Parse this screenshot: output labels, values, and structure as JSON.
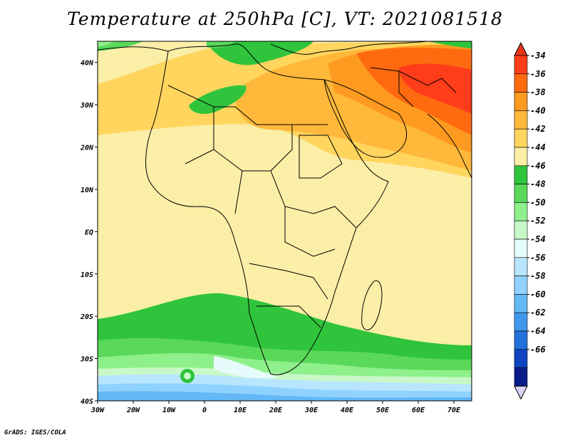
{
  "title": "Temperature at 250hPa [C], VT: 2021081518",
  "credit": "GrADS: IGES/COLA",
  "map": {
    "lat_ticks": [
      "40N",
      "30N",
      "20N",
      "10N",
      "EQ",
      "10S",
      "20S",
      "30S",
      "40S"
    ],
    "lon_ticks": [
      "30W",
      "20W",
      "10W",
      "0",
      "10E",
      "20E",
      "30E",
      "40E",
      "50E",
      "60E",
      "70E"
    ],
    "extent": {
      "lon": [
        -30,
        75
      ],
      "lat": [
        -40,
        45
      ]
    }
  },
  "colorbar": {
    "labels": [
      "-34",
      "-36",
      "-38",
      "-40",
      "-42",
      "-44",
      "-46",
      "-48",
      "-50",
      "-52",
      "-54",
      "-56",
      "-58",
      "-60",
      "-62",
      "-64",
      "-66"
    ],
    "colors": [
      "#ff3d1a",
      "#ff6a10",
      "#ff9a20",
      "#ffb83a",
      "#ffd55e",
      "#fbeea6",
      "#2fc43c",
      "#5ad85a",
      "#8ef08b",
      "#c8f8c8",
      "#e6fbfb",
      "#b8e6ff",
      "#8fd2ff",
      "#63b8f5",
      "#3f98ec",
      "#2470db",
      "#0f45c0",
      "#0a1b8a"
    ],
    "top_color": "#e8341a",
    "bottom_color": "#d8d4f6"
  }
}
